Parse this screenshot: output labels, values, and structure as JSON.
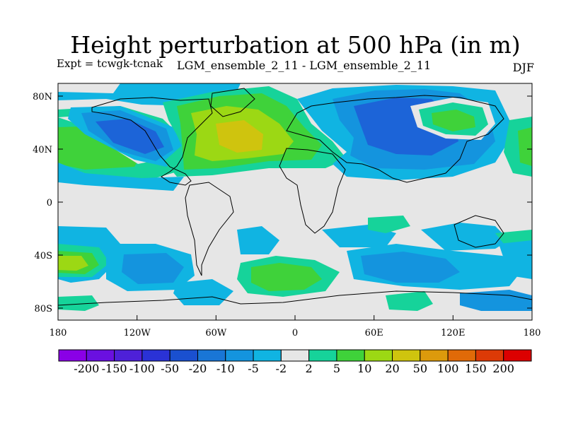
{
  "header": {
    "title": "Height perturbation at 500 hPa (in m)",
    "experiment": "Expt = tcwgk-tcnak",
    "ensemble": "LGM_ensemble_2_11 - LGM_ensemble_2_11",
    "season": "DJF"
  },
  "axes": {
    "x_ticks": [
      "180",
      "120W",
      "60W",
      "0",
      "60E",
      "120E",
      "180"
    ],
    "y_ticks": [
      "80N",
      "40N",
      "0",
      "40S",
      "80S"
    ]
  },
  "colorbar": {
    "labels": [
      "-200",
      "-150",
      "-100",
      "-50",
      "-20",
      "-10",
      "-5",
      "-2",
      "2",
      "5",
      "10",
      "20",
      "50",
      "100",
      "150",
      "200"
    ],
    "colors": [
      "#8a00e6",
      "#6a10e0",
      "#4e20d8",
      "#2a32d6",
      "#1a50d0",
      "#1976d6",
      "#1494de",
      "#10b4e2",
      "#e6e6e6",
      "#16d39a",
      "#3fd23a",
      "#9cd814",
      "#cfc40e",
      "#dc9a0c",
      "#e06a08",
      "#dc3a06",
      "#dc0000"
    ]
  },
  "colors": {
    "background": "#e6e6e6",
    "strong_negative": "#1c64d8",
    "negative": "#1494de",
    "weak_negative": "#10b4e2",
    "weak_positive": "#16d39a",
    "positive": "#3fd23a",
    "strong_positive": "#9cd814",
    "maximum": "#cfc40e"
  }
}
